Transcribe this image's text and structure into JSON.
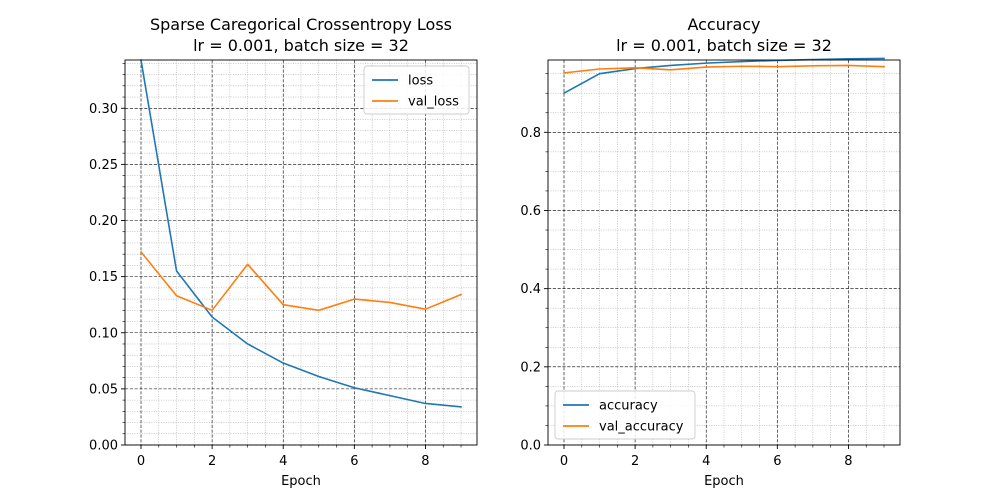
{
  "chart_data": [
    {
      "type": "line",
      "title": "Sparse Caregorical Crossentropy Loss\nlr = 0.001, batch size = 32",
      "xlabel": "Epoch",
      "ylabel": "",
      "xlim": [
        -0.45,
        9.45
      ],
      "ylim": [
        0,
        0.343
      ],
      "x_ticks": [
        0,
        2,
        4,
        6,
        8
      ],
      "y_ticks": [
        0.0,
        0.05,
        0.1,
        0.15,
        0.2,
        0.25,
        0.3
      ],
      "y_tick_labels": [
        "0.00",
        "0.05",
        "0.10",
        "0.15",
        "0.20",
        "0.25",
        "0.30"
      ],
      "x_minor_step": 0.5,
      "y_minor_step": 0.01,
      "grid": true,
      "legend_position": "top-right",
      "x": [
        0,
        1,
        2,
        3,
        4,
        5,
        6,
        7,
        8,
        9
      ],
      "series": [
        {
          "name": "loss",
          "color": "#1f77b4",
          "values": [
            0.343,
            0.155,
            0.114,
            0.09,
            0.073,
            0.061,
            0.051,
            0.044,
            0.037,
            0.034
          ]
        },
        {
          "name": "val_loss",
          "color": "#ff7f0e",
          "values": [
            0.172,
            0.133,
            0.12,
            0.161,
            0.125,
            0.12,
            0.13,
            0.127,
            0.121,
            0.134
          ]
        }
      ]
    },
    {
      "type": "line",
      "title": "Accuracy\nlr = 0.001, batch size = 32",
      "xlabel": "Epoch",
      "ylabel": "",
      "xlim": [
        -0.45,
        9.45
      ],
      "ylim": [
        0,
        0.985
      ],
      "x_ticks": [
        0,
        2,
        4,
        6,
        8
      ],
      "y_ticks": [
        0.0,
        0.2,
        0.4,
        0.6,
        0.8
      ],
      "y_tick_labels": [
        "0.0",
        "0.2",
        "0.4",
        "0.6",
        "0.8"
      ],
      "x_minor_step": 0.5,
      "y_minor_step": 0.05,
      "grid": true,
      "legend_position": "bottom-left",
      "x": [
        0,
        1,
        2,
        3,
        4,
        5,
        6,
        7,
        8,
        9
      ],
      "series": [
        {
          "name": "accuracy",
          "color": "#1f77b4",
          "values": [
            0.9,
            0.95,
            0.963,
            0.971,
            0.977,
            0.981,
            0.984,
            0.986,
            0.988,
            0.989
          ]
        },
        {
          "name": "val_accuracy",
          "color": "#ff7f0e",
          "values": [
            0.952,
            0.962,
            0.965,
            0.96,
            0.967,
            0.969,
            0.968,
            0.97,
            0.971,
            0.968
          ]
        }
      ]
    }
  ]
}
